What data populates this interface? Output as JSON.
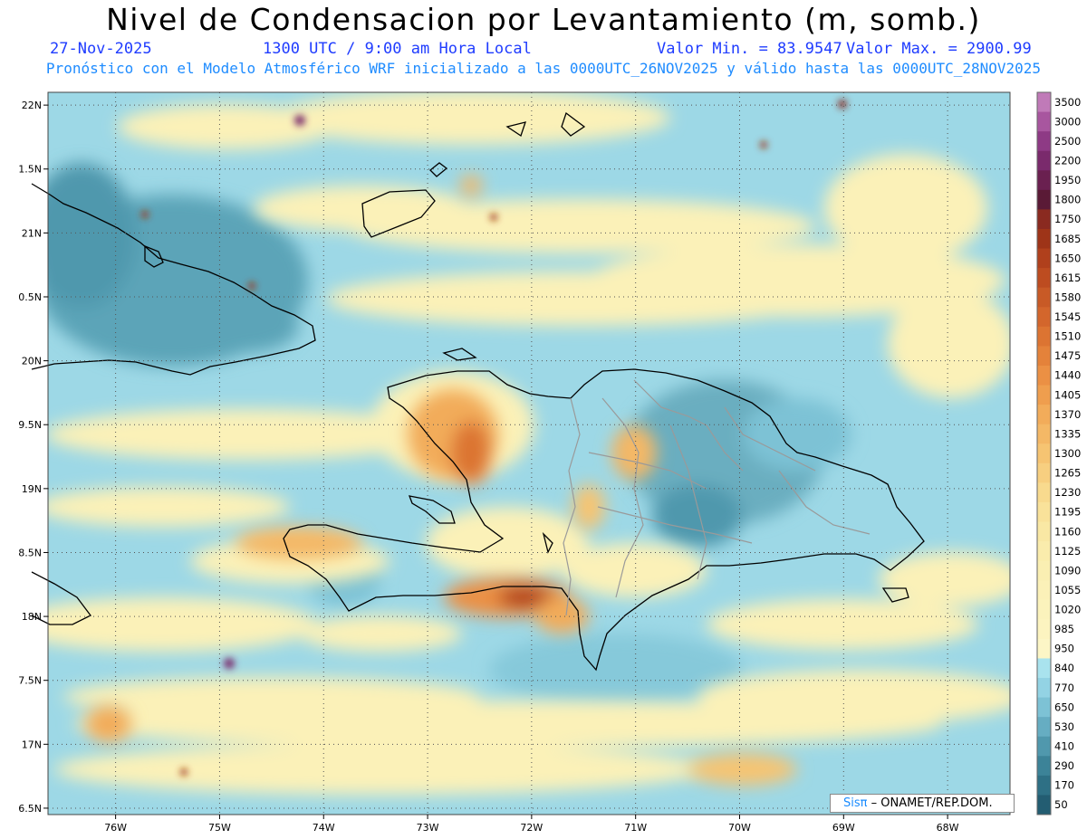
{
  "header": {
    "title": "Nivel de Condensacion por Levantamiento (m, somb.)",
    "date": "27-Nov-2025",
    "time": "1300 UTC / 9:00 am Hora Local",
    "vmin": "Valor Min. = 83.9547",
    "vmax": "Valor Max. = 2900.99",
    "model_line": "Pronóstico con el Modelo Atmosférico WRF inicializado a las 0000UTC_26NOV2025 y válido hasta las  0000UTC_28NOV2025"
  },
  "axes": {
    "lat_labels": [
      "22N",
      "1.5N",
      "21N",
      "0.5N",
      "20N",
      "9.5N",
      "19N",
      "8.5N",
      "18N",
      "7.5N",
      "17N",
      "6.5N"
    ],
    "lat_values": [
      22,
      21.5,
      21,
      20.5,
      20,
      19.5,
      19,
      18.5,
      18,
      17.5,
      17,
      16.5
    ],
    "lon_labels": [
      "76W",
      "75W",
      "74W",
      "73W",
      "72W",
      "71W",
      "70W",
      "69W",
      "68W"
    ],
    "lon_values": [
      -76,
      -75,
      -74,
      -73,
      -72,
      -71,
      -70,
      -69,
      -68
    ],
    "lat_range": [
      16.45,
      22.1
    ],
    "lon_range": [
      -76.65,
      -67.4
    ]
  },
  "colorbar": {
    "levels": [
      "3500",
      "3000",
      "2500",
      "2200",
      "1950",
      "1800",
      "1750",
      "1685",
      "1650",
      "1615",
      "1580",
      "1545",
      "1510",
      "1475",
      "1440",
      "1405",
      "1370",
      "1335",
      "1300",
      "1265",
      "1230",
      "1195",
      "1160",
      "1125",
      "1090",
      "1055",
      "1020",
      "985",
      "950",
      "840",
      "770",
      "650",
      "530",
      "410",
      "290",
      "170",
      "50"
    ],
    "colors": [
      "#c07ab8",
      "#a8569f",
      "#8e3a85",
      "#7a2a6c",
      "#6a2050",
      "#5a1a36",
      "#8a2a20",
      "#9e3418",
      "#b0401c",
      "#bd4c20",
      "#c85a26",
      "#d3662c",
      "#dc7432",
      "#e4823a",
      "#eb9044",
      "#ef9e4e",
      "#f2ac5a",
      "#f4b866",
      "#f6c472",
      "#f7cf80",
      "#f8da8e",
      "#f9e29a",
      "#f9e8a4",
      "#faecac",
      "#faefb2",
      "#fbf1b8",
      "#fbf3bc",
      "#fcf4c0",
      "#fcf6c6",
      "#a9e3ee",
      "#93d3e4",
      "#7dc2d5",
      "#66adc2",
      "#5098ad",
      "#3c8398",
      "#2e7085",
      "#235d72"
    ]
  },
  "credit": {
    "brand": "Sisπ",
    "org": " – ONAMET/REP.DOM."
  }
}
